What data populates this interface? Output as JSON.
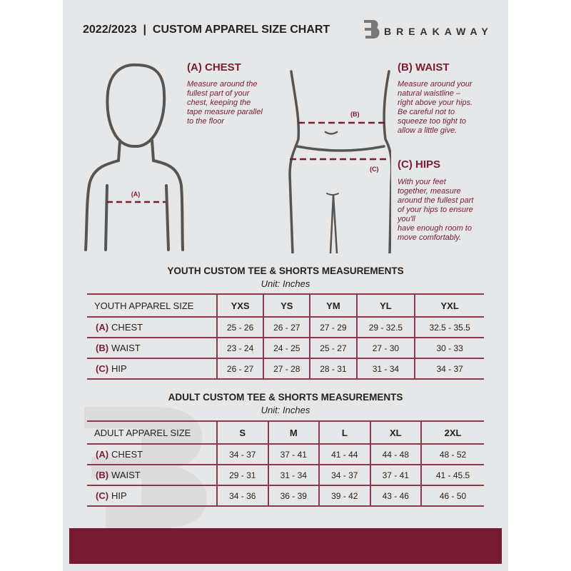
{
  "header": {
    "title": "2022/2023  |  CUSTOM APPAREL SIZE CHART",
    "brand": "BREAKAWAY",
    "logo_letter": "B"
  },
  "chest": {
    "heading": "(A) CHEST",
    "text": [
      "Measure around the",
      "fullest part of your",
      "chest, keeping the",
      "tape measure parallel",
      "to the floor"
    ],
    "marker": "(A)"
  },
  "waist": {
    "heading": "(B) WAIST",
    "text": [
      "Measure around your",
      "natural waistline –",
      "right above your hips.",
      "Be careful not to",
      "squeeze too tight to",
      "allow a little give."
    ],
    "marker": "(B)"
  },
  "hips": {
    "heading": "(C) HIPS",
    "text": [
      "With your feet",
      "together, measure",
      "around the fullest part",
      "of your hips to ensure",
      "you'll",
      "have enough room to",
      "move comfortably."
    ],
    "marker": "(C)"
  },
  "youth": {
    "title": "YOUTH CUSTOM TEE & SHORTS MEASUREMENTS",
    "unit": "Unit: Inches",
    "size_label": "YOUTH APPAREL SIZE",
    "sizes": [
      "YXS",
      "YS",
      "YM",
      "YL",
      "YXL"
    ],
    "rows": [
      {
        "code": "(A)",
        "name": "CHEST",
        "values": [
          "25 - 26",
          "26 - 27",
          "27 - 29",
          "29 - 32.5",
          "32.5 - 35.5"
        ]
      },
      {
        "code": "(B)",
        "name": "WAIST",
        "values": [
          "23 - 24",
          "24 - 25",
          "25 - 27",
          "27 - 30",
          "30 - 33"
        ]
      },
      {
        "code": "(C)",
        "name": "HIP",
        "values": [
          "26 - 27",
          "27 - 28",
          "28 - 31",
          "31 - 34",
          "34 - 37"
        ]
      }
    ]
  },
  "adult": {
    "title": "ADULT CUSTOM TEE & SHORTS MEASUREMENTS",
    "unit": "Unit: Inches",
    "size_label": "ADULT APPAREL SIZE",
    "sizes": [
      "S",
      "M",
      "L",
      "XL",
      "2XL"
    ],
    "rows": [
      {
        "code": "(A)",
        "name": "CHEST",
        "values": [
          "34 - 37",
          "37 - 41",
          "41 - 44",
          "44 - 48",
          "48 - 52"
        ]
      },
      {
        "code": "(B)",
        "name": "WAIST",
        "values": [
          "29 - 31",
          "31 - 34",
          "34 - 37",
          "37 - 41",
          "41 - 45.5"
        ]
      },
      {
        "code": "(C)",
        "name": "HIP",
        "values": [
          "34 - 36",
          "36 - 39",
          "39 - 42",
          "43 - 46",
          "46 - 50"
        ]
      }
    ]
  },
  "colors": {
    "accent": "#741b31",
    "background": "#e6e7e8"
  }
}
